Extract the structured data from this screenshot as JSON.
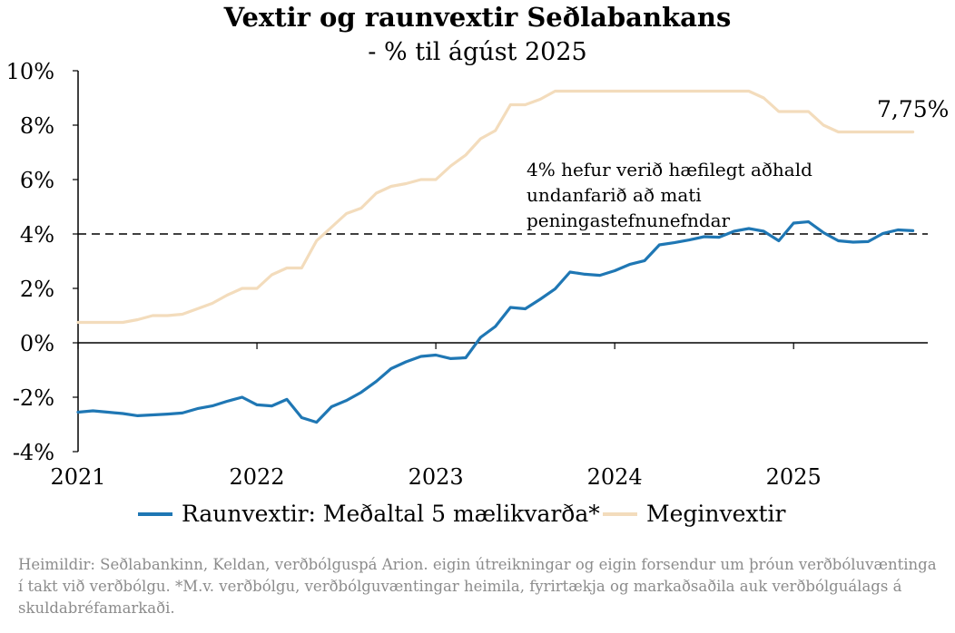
{
  "title": "Vextir og raunvextir Seðlabankans",
  "subtitle": "- % til ágúst 2025",
  "footnote": "Heimildir: Seðlabankinn, Keldan, verðbólguspá Arion. eigin útreikningar og eigin forsendur um þróun verðbóluvæntinga í takt við verðbólgu. *M.v. verðbólgu, verðbólguvæntingar heimila, fyrirtækja og markaðsaðila auk verðbólguálags á skuldabréfamarkaði.",
  "annotation": "4% hefur verið hæfilegt aðhald undanfarið að mati peningastefnunefndar",
  "last_value_label": "7,75%",
  "chart_data": {
    "type": "line",
    "title": "Vextir og raunvextir Seðlabankans",
    "subtitle": "- % til ágúst 2025",
    "xlabel": "",
    "ylabel": "",
    "x_ticks": [
      "2021",
      "2022",
      "2023",
      "2024",
      "2025"
    ],
    "x_tick_years": [
      2021,
      2022,
      2023,
      2024,
      2025
    ],
    "xlim": [
      2021.0,
      2025.75
    ],
    "ylim": [
      -4,
      10
    ],
    "y_ticks": [
      -4,
      -2,
      0,
      2,
      4,
      6,
      8,
      10
    ],
    "y_tick_labels": [
      "-4%",
      "-2%",
      "0%",
      "2%",
      "4%",
      "6%",
      "8%",
      "10%"
    ],
    "grid": false,
    "legend_position": "bottom",
    "reference_line": {
      "y": 4,
      "style": "dashed",
      "color": "#000000"
    },
    "series": [
      {
        "name": "Raunvextir: Meðaltal 5 mælikvarða*",
        "color": "#1f77b4",
        "x": [
          2021.0,
          2021.083,
          2021.167,
          2021.25,
          2021.333,
          2021.417,
          2021.5,
          2021.583,
          2021.667,
          2021.75,
          2021.833,
          2021.917,
          2022.0,
          2022.083,
          2022.167,
          2022.25,
          2022.333,
          2022.417,
          2022.5,
          2022.583,
          2022.667,
          2022.75,
          2022.833,
          2022.917,
          2023.0,
          2023.083,
          2023.167,
          2023.25,
          2023.333,
          2023.417,
          2023.5,
          2023.583,
          2023.667,
          2023.75,
          2023.833,
          2023.917,
          2024.0,
          2024.083,
          2024.167,
          2024.25,
          2024.333,
          2024.417,
          2024.5,
          2024.583,
          2024.667,
          2024.75,
          2024.833,
          2024.917,
          2025.0,
          2025.083,
          2025.167,
          2025.25,
          2025.333,
          2025.417,
          2025.5,
          2025.583,
          2025.667
        ],
        "values": [
          -2.55,
          -2.5,
          -2.55,
          -2.6,
          -2.68,
          -2.65,
          -2.62,
          -2.58,
          -2.42,
          -2.32,
          -2.15,
          -2.0,
          -2.28,
          -2.32,
          -2.08,
          -2.75,
          -2.92,
          -2.35,
          -2.12,
          -1.82,
          -1.42,
          -0.95,
          -0.7,
          -0.5,
          -0.45,
          -0.58,
          -0.55,
          0.2,
          0.6,
          1.3,
          1.25,
          1.6,
          1.98,
          2.6,
          2.52,
          2.48,
          2.65,
          2.88,
          3.02,
          3.6,
          3.68,
          3.78,
          3.9,
          3.88,
          4.1,
          4.2,
          4.1,
          3.75,
          4.4,
          4.45,
          4.05,
          3.75,
          3.7,
          3.72,
          4.02,
          4.15,
          4.12
        ]
      },
      {
        "name": "Meginvextir",
        "color": "#f3dcbc",
        "x": [
          2021.0,
          2021.083,
          2021.167,
          2021.25,
          2021.333,
          2021.417,
          2021.5,
          2021.583,
          2021.667,
          2021.75,
          2021.833,
          2021.917,
          2022.0,
          2022.083,
          2022.167,
          2022.25,
          2022.333,
          2022.417,
          2022.5,
          2022.583,
          2022.667,
          2022.75,
          2022.833,
          2022.917,
          2023.0,
          2023.083,
          2023.167,
          2023.25,
          2023.333,
          2023.417,
          2023.5,
          2023.583,
          2023.667,
          2023.75,
          2023.833,
          2023.917,
          2024.0,
          2024.083,
          2024.167,
          2024.25,
          2024.333,
          2024.417,
          2024.5,
          2024.583,
          2024.667,
          2024.75,
          2024.833,
          2024.917,
          2025.0,
          2025.083,
          2025.167,
          2025.25,
          2025.333,
          2025.417,
          2025.5,
          2025.583,
          2025.667
        ],
        "values": [
          0.75,
          0.75,
          0.75,
          0.75,
          0.85,
          1.0,
          1.0,
          1.05,
          1.25,
          1.45,
          1.75,
          2.0,
          2.0,
          2.5,
          2.75,
          2.75,
          3.75,
          4.25,
          4.75,
          4.95,
          5.5,
          5.75,
          5.85,
          6.0,
          6.0,
          6.5,
          6.9,
          7.5,
          7.8,
          8.75,
          8.75,
          8.95,
          9.25,
          9.25,
          9.25,
          9.25,
          9.25,
          9.25,
          9.25,
          9.25,
          9.25,
          9.25,
          9.25,
          9.25,
          9.25,
          9.25,
          9.0,
          8.5,
          8.5,
          8.5,
          8.0,
          7.75,
          7.75,
          7.75,
          7.75,
          7.75,
          7.75
        ]
      }
    ]
  }
}
